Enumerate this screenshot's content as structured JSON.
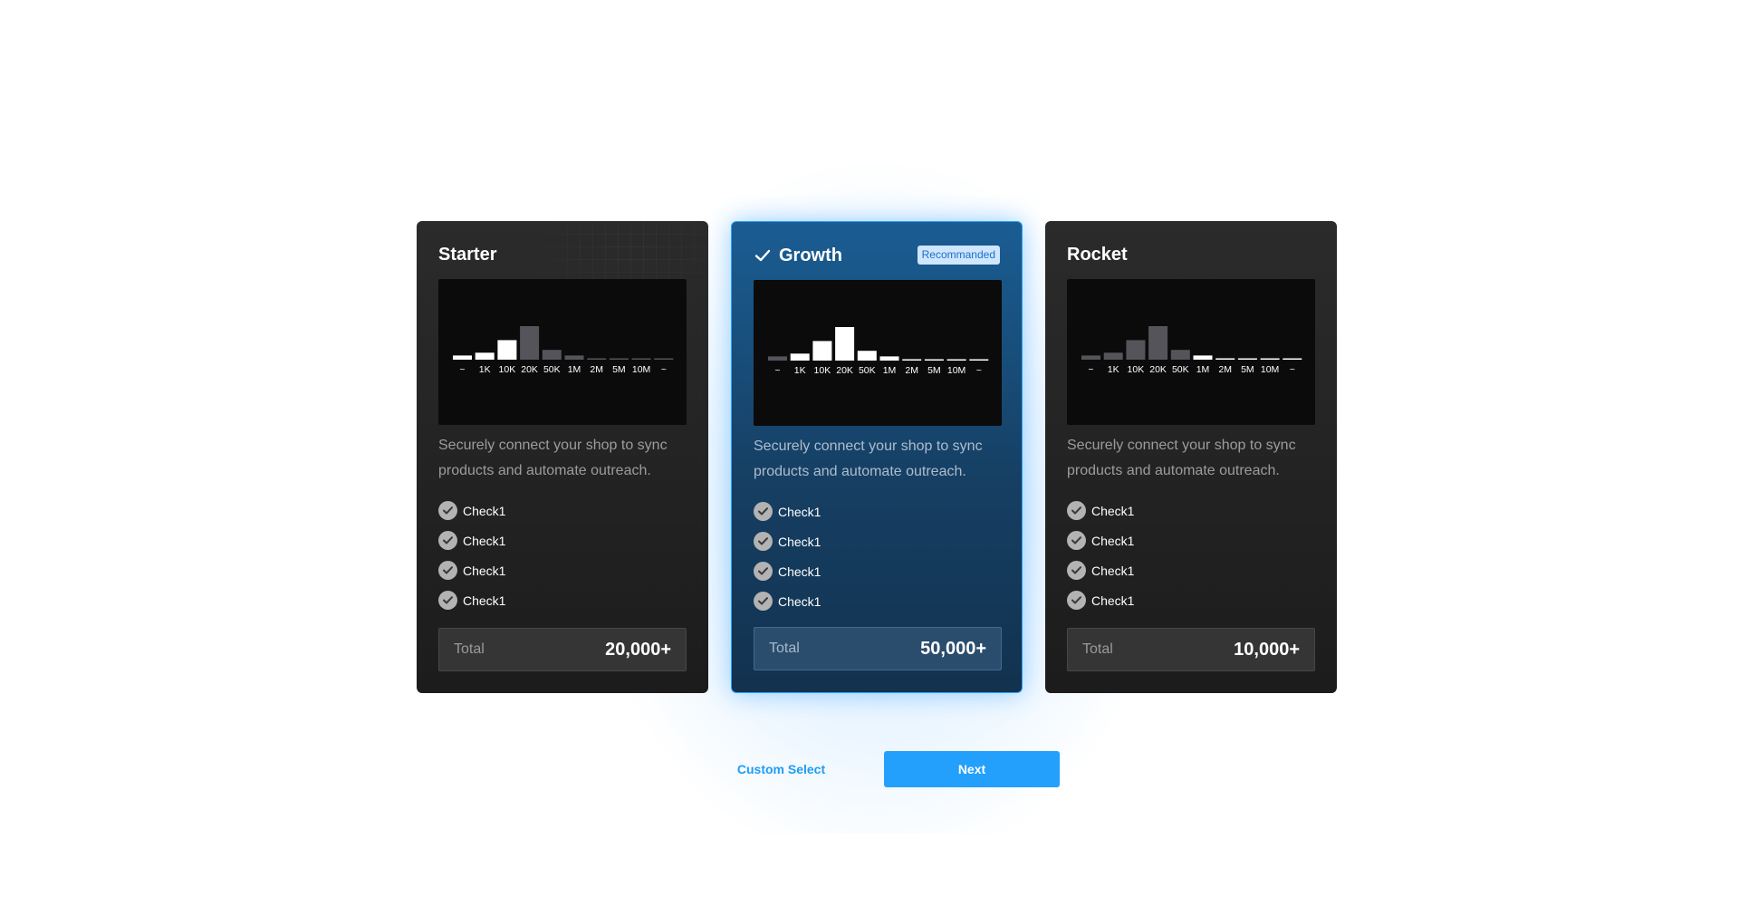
{
  "plans": [
    {
      "name": "Starter",
      "description": "Securely connect your shop to sync products and automate outreach.",
      "features": [
        "Check1",
        "Check1",
        "Check1",
        "Check1"
      ],
      "total_label": "Total",
      "total_value": "20,000+"
    },
    {
      "name": "Growth",
      "badge": "Recommanded",
      "description": "Securely connect your shop to sync products and automate outreach.",
      "features": [
        "Check1",
        "Check1",
        "Check1",
        "Check1"
      ],
      "total_label": "Total",
      "total_value": "50,000+"
    },
    {
      "name": "Rocket",
      "description": "Securely connect your shop to sync products and automate outreach.",
      "features": [
        "Check1",
        "Check1",
        "Check1",
        "Check1"
      ],
      "total_label": "Total",
      "total_value": "10,000+"
    }
  ],
  "chart_data": [
    {
      "type": "bar",
      "categories": [
        "~",
        "1K",
        "10K",
        "20K",
        "50K",
        "1M",
        "2M",
        "5M",
        "10M",
        "~"
      ],
      "values": [
        3,
        5,
        14,
        24,
        7,
        3,
        1,
        0.5,
        0.5,
        0.5
      ],
      "highlighted": [
        true,
        true,
        true,
        false,
        false,
        false,
        false,
        false,
        false,
        false
      ]
    },
    {
      "type": "bar",
      "categories": [
        "~",
        "1K",
        "10K",
        "20K",
        "50K",
        "1M",
        "2M",
        "5M",
        "10M",
        "~"
      ],
      "values": [
        3,
        5,
        14,
        24,
        7,
        3,
        1,
        0.5,
        0.5,
        0.5
      ],
      "highlighted": [
        false,
        true,
        true,
        true,
        true,
        true,
        true,
        true,
        true,
        true
      ]
    },
    {
      "type": "bar",
      "categories": [
        "~",
        "1K",
        "10K",
        "20K",
        "50K",
        "1M",
        "2M",
        "5M",
        "10M",
        "~"
      ],
      "values": [
        3,
        5,
        14,
        24,
        7,
        3,
        1,
        0.5,
        0.5,
        0.5
      ],
      "highlighted": [
        false,
        false,
        false,
        false,
        false,
        true,
        true,
        true,
        true,
        true
      ]
    }
  ],
  "colors": {
    "bar_active": "#ffffff",
    "bar_inactive": "#55545a",
    "accent": "#23a0fb",
    "badge_bg": "#cfe6ff"
  },
  "actions": {
    "custom_select_label": "Custom Select",
    "next_label": "Next"
  }
}
